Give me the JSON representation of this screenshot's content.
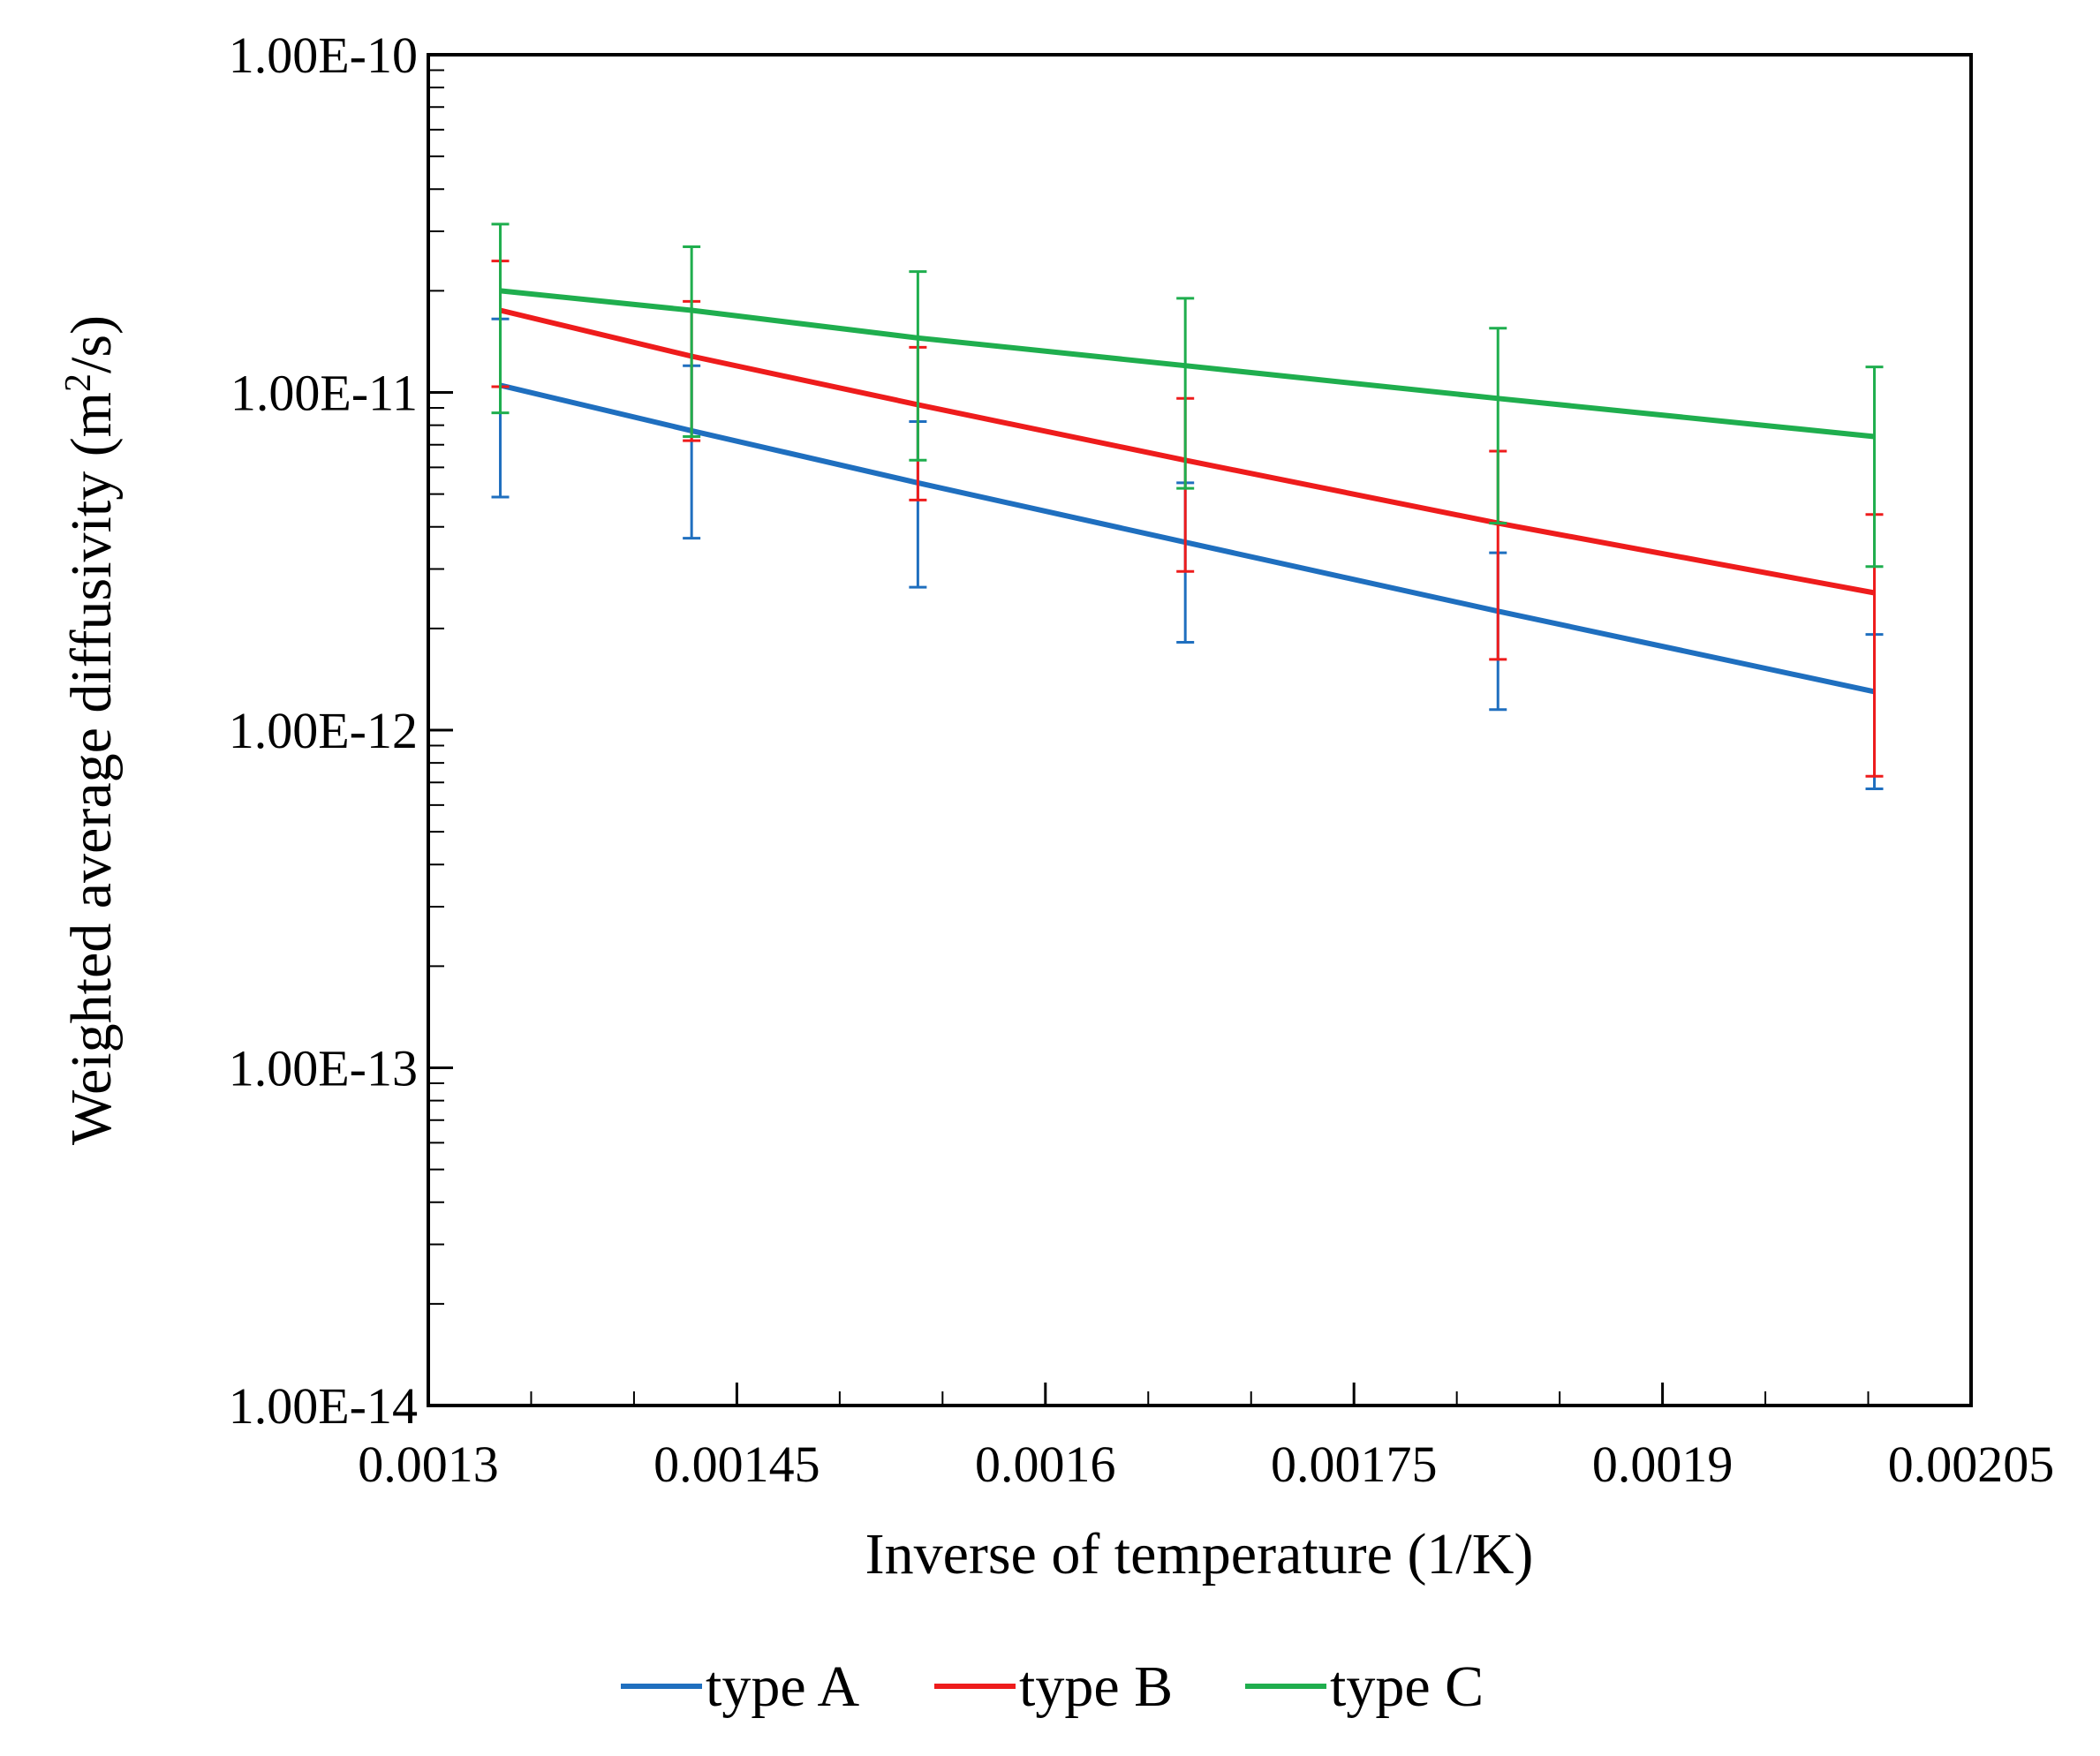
{
  "chart_data": {
    "type": "line",
    "title": "",
    "xlabel": "Inverse of temperature (1/K)",
    "ylabel": "Weighted average diffusivity (m²/s)",
    "ylabel_parts": {
      "before": "Weighted average diffusivity (m",
      "sup": "2",
      "after": "/s)"
    },
    "xlim": [
      0.0013,
      0.00205
    ],
    "ylim": [
      1e-14,
      1e-10
    ],
    "yscale": "log",
    "x_ticks": [
      0.0013,
      0.00145,
      0.0016,
      0.00175,
      0.0019,
      0.00205
    ],
    "x_tick_labels": [
      "0.0013",
      "0.00145",
      "0.0016",
      "0.00175",
      "0.0019",
      "0.00205"
    ],
    "y_ticks": [
      1e-14,
      1e-13,
      1e-12,
      1e-11,
      1e-10
    ],
    "y_tick_labels": [
      "1.00E-14",
      "1.00E-13",
      "1.00E-12",
      "1.00E-11",
      "1.00E-10"
    ],
    "grid": false,
    "legend_position": "bottom",
    "series": [
      {
        "name": "type A",
        "color": "#1f6fbf",
        "x": [
          0.001335,
          0.001428,
          0.001538,
          0.001668,
          0.00182,
          0.002003
        ],
        "y": [
          1.05e-11,
          7.7e-12,
          5.4e-12,
          3.6e-12,
          2.25e-12,
          1.3e-12
        ],
        "y_upper": [
          1.65e-11,
          1.2e-11,
          8.2e-12,
          5.4e-12,
          3.35e-12,
          1.92e-12
        ],
        "y_lower": [
          4.9e-12,
          3.7e-12,
          2.65e-12,
          1.82e-12,
          1.15e-12,
          6.7e-13
        ]
      },
      {
        "name": "type B",
        "color": "#ee1c1c",
        "x": [
          0.001335,
          0.001428,
          0.001538,
          0.001668,
          0.00182,
          0.002003
        ],
        "y": [
          1.75e-11,
          1.28e-11,
          9.2e-12,
          6.3e-12,
          4.1e-12,
          2.55e-12
        ],
        "y_upper": [
          2.45e-11,
          1.86e-11,
          1.36e-11,
          9.6e-12,
          6.7e-12,
          4.35e-12
        ],
        "y_lower": [
          1.04e-11,
          7.2e-12,
          4.8e-12,
          2.95e-12,
          1.62e-12,
          7.3e-13
        ]
      },
      {
        "name": "type C",
        "color": "#1fae4e",
        "x": [
          0.001335,
          0.001428,
          0.001538,
          0.001668,
          0.00182,
          0.002003
        ],
        "y": [
          2e-11,
          1.75e-11,
          1.45e-11,
          1.2e-11,
          9.6e-12,
          7.4e-12
        ],
        "y_upper": [
          3.15e-11,
          2.7e-11,
          2.28e-11,
          1.9e-11,
          1.55e-11,
          1.19e-11
        ],
        "y_lower": [
          8.7e-12,
          7.4e-12,
          6.3e-12,
          5.2e-12,
          4.1e-12,
          3.05e-12
        ]
      }
    ]
  }
}
